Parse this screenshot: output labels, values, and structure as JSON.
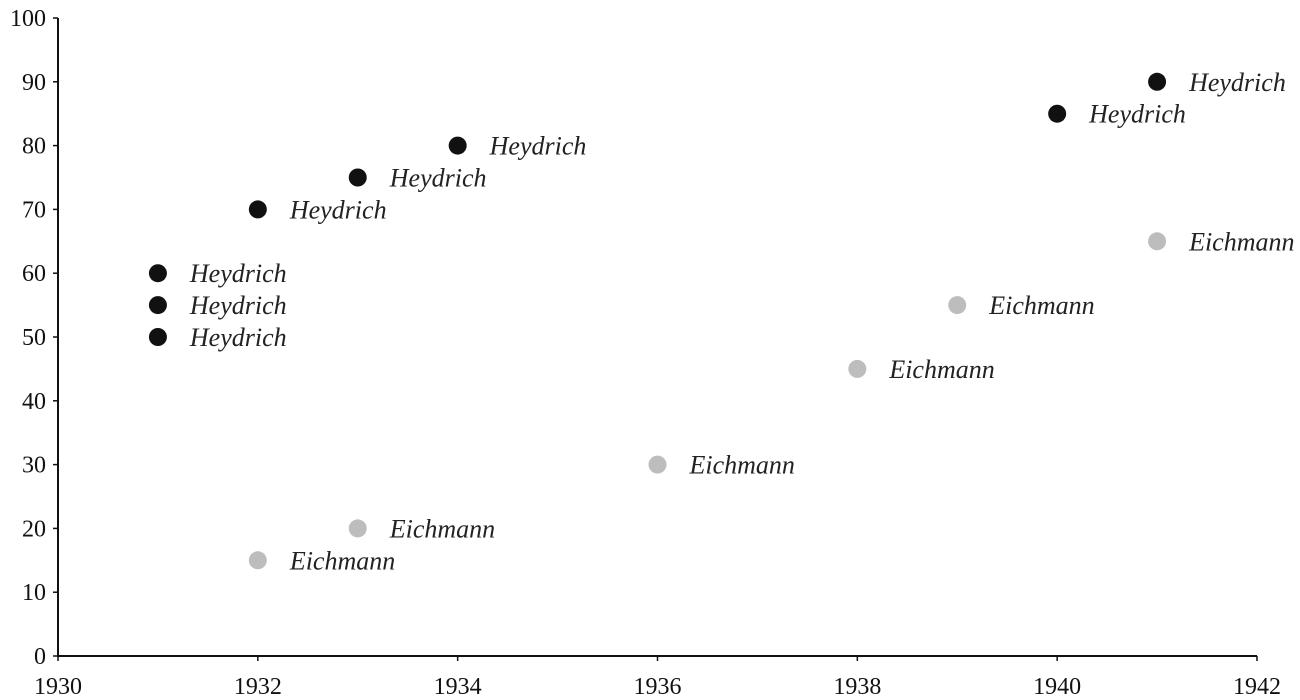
{
  "chart_data": {
    "type": "scatter",
    "xlim": [
      1930,
      1942
    ],
    "ylim": [
      0,
      100
    ],
    "x_ticks": [
      1930,
      1932,
      1934,
      1936,
      1938,
      1940,
      1942
    ],
    "y_ticks": [
      0,
      10,
      20,
      30,
      40,
      50,
      60,
      70,
      80,
      90,
      100
    ],
    "grid": false,
    "legend": "none",
    "colors": {
      "axis": "#111111",
      "heydrich": "#111111",
      "eichmann": "#bdbdbd"
    },
    "points": [
      {
        "x": 1931,
        "y": 60,
        "label": "Heydrich",
        "group": "heydrich"
      },
      {
        "x": 1931,
        "y": 55,
        "label": "Heydrich",
        "group": "heydrich"
      },
      {
        "x": 1931,
        "y": 50,
        "label": "Heydrich",
        "group": "heydrich"
      },
      {
        "x": 1932,
        "y": 70,
        "label": "Heydrich",
        "group": "heydrich"
      },
      {
        "x": 1933,
        "y": 75,
        "label": "Heydrich",
        "group": "heydrich"
      },
      {
        "x": 1934,
        "y": 80,
        "label": "Heydrich",
        "group": "heydrich"
      },
      {
        "x": 1940,
        "y": 85,
        "label": "Heydrich",
        "group": "heydrich"
      },
      {
        "x": 1941,
        "y": 90,
        "label": "Heydrich",
        "group": "heydrich"
      },
      {
        "x": 1932,
        "y": 15,
        "label": "Eichmann",
        "group": "eichmann"
      },
      {
        "x": 1933,
        "y": 20,
        "label": "Eichmann",
        "group": "eichmann"
      },
      {
        "x": 1936,
        "y": 30,
        "label": "Eichmann",
        "group": "eichmann"
      },
      {
        "x": 1938,
        "y": 45,
        "label": "Eichmann",
        "group": "eichmann"
      },
      {
        "x": 1939,
        "y": 55,
        "label": "Eichmann",
        "group": "eichmann"
      },
      {
        "x": 1941,
        "y": 65,
        "label": "Eichmann",
        "group": "eichmann"
      }
    ]
  }
}
